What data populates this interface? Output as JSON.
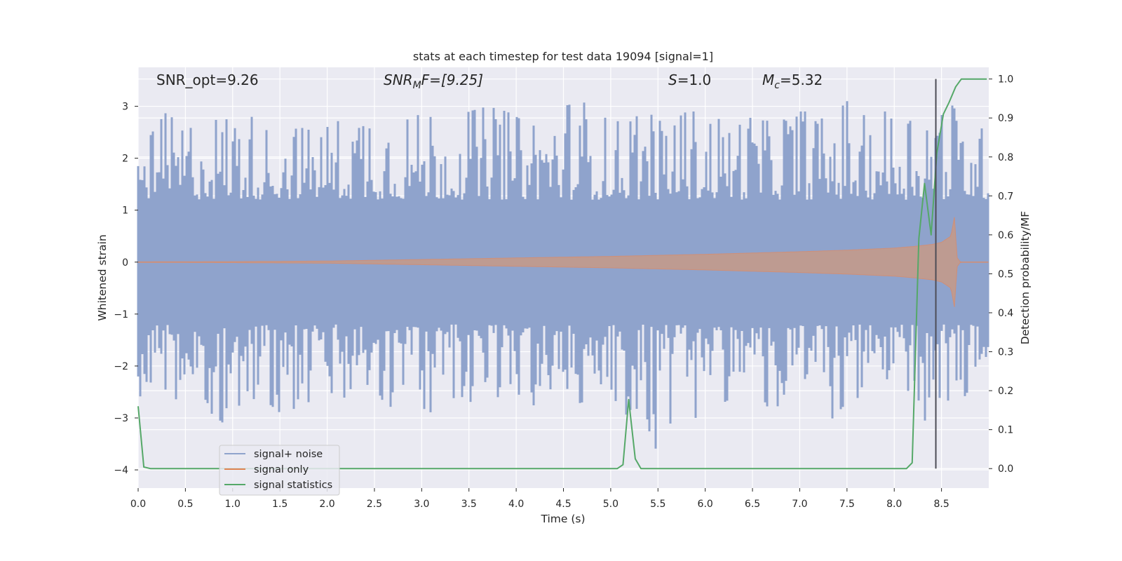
{
  "chart_data": {
    "type": "line",
    "title": "stats at each timestep for test data 19094 [signal=1]",
    "xlabel": "Time (s)",
    "ylabel": "Whitened strain",
    "ylabel_right": "Detection probability/MF",
    "xlim": [
      0,
      9.0
    ],
    "ylim": [
      -4.35,
      3.75
    ],
    "ylim_right": [
      -0.05,
      1.03
    ],
    "x_ticks": [
      0.0,
      0.5,
      1.0,
      1.5,
      2.0,
      2.5,
      3.0,
      3.5,
      4.0,
      4.5,
      5.0,
      5.5,
      6.0,
      6.5,
      7.0,
      7.5,
      8.0,
      8.5
    ],
    "x_tick_labels": [
      "0.0",
      "0.5",
      "1.0",
      "1.5",
      "2.0",
      "2.5",
      "3.0",
      "3.5",
      "4.0",
      "4.5",
      "5.0",
      "5.5",
      "6.0",
      "6.5",
      "7.0",
      "7.5",
      "8.0",
      "8.5"
    ],
    "y_ticks": [
      -4,
      -3,
      -2,
      -1,
      0,
      1,
      2,
      3
    ],
    "y_tick_labels": [
      "−4",
      "−3",
      "−2",
      "−1",
      "0",
      "1",
      "2",
      "3"
    ],
    "y_ticks_right": [
      0.0,
      0.1,
      0.2,
      0.3,
      0.4,
      0.5,
      0.6,
      0.7,
      0.8,
      0.9,
      1.0
    ],
    "y_tick_labels_right": [
      "0.0",
      "0.1",
      "0.2",
      "0.3",
      "0.4",
      "0.5",
      "0.6",
      "0.7",
      "0.8",
      "0.9",
      "1.0"
    ],
    "grid": true,
    "legend_position": "lower-left",
    "annotations": {
      "snr_opt": "SNR_opt=9.26",
      "snr_mf_main": "SNR",
      "snr_mf_sub": "M",
      "snr_mf_rest": "F=[9.25]",
      "s_main": "S",
      "s_rest": "=1.0",
      "mc_main": "M",
      "mc_sub": "c",
      "mc_rest": "=5.32"
    },
    "vline": {
      "x": 8.44,
      "y_from": 0.0,
      "y_to": 1.0,
      "color": "#4c4c55"
    },
    "series": [
      {
        "name": "signal+ noise",
        "color": "#8fa3cc",
        "envelope": {
          "x": [
            0.0,
            0.15,
            0.3,
            0.5,
            0.7,
            0.9,
            1.1,
            1.3,
            1.5,
            1.7,
            1.9,
            2.1,
            2.3,
            2.5,
            2.7,
            2.9,
            3.1,
            3.3,
            3.5,
            3.7,
            3.9,
            4.1,
            4.3,
            4.5,
            4.7,
            4.9,
            5.1,
            5.3,
            5.5,
            5.7,
            5.9,
            6.1,
            6.3,
            6.5,
            6.7,
            6.9,
            7.1,
            7.3,
            7.5,
            7.7,
            7.9,
            8.1,
            8.3,
            8.5,
            8.7,
            9.0
          ],
          "upper": [
            2.0,
            2.5,
            2.9,
            2.5,
            2.8,
            2.7,
            3.0,
            2.6,
            2.4,
            2.6,
            2.5,
            2.7,
            2.9,
            3.2,
            2.7,
            2.8,
            2.9,
            2.6,
            2.9,
            3.0,
            2.9,
            2.7,
            2.8,
            3.0,
            3.1,
            2.8,
            2.7,
            3.1,
            2.7,
            2.9,
            2.9,
            2.8,
            2.6,
            2.8,
            2.7,
            2.9,
            2.9,
            2.7,
            3.1,
            2.8,
            2.9,
            2.9,
            3.1,
            3.3,
            2.8,
            2.5
          ],
          "lower": [
            -2.6,
            -2.5,
            -2.9,
            -2.6,
            -2.8,
            -3.1,
            -2.7,
            -2.6,
            -2.9,
            -2.8,
            -2.6,
            -2.7,
            -2.5,
            -2.7,
            -2.8,
            -2.7,
            -2.9,
            -2.6,
            -2.7,
            -2.6,
            -2.6,
            -2.8,
            -2.7,
            -2.8,
            -2.7,
            -2.9,
            -3.0,
            -2.8,
            -3.7,
            -2.8,
            -3.0,
            -2.8,
            -2.6,
            -2.7,
            -2.8,
            -2.9,
            -2.8,
            -3.1,
            -2.7,
            -2.6,
            -2.9,
            -2.8,
            -3.1,
            -2.7,
            -2.6,
            -2.5
          ],
          "core": 1.2
        }
      },
      {
        "name": "signal only",
        "color": "#dd8452",
        "envelope": {
          "x": [
            0.0,
            1.0,
            2.0,
            3.0,
            4.0,
            5.0,
            6.0,
            7.0,
            7.5,
            8.0,
            8.2,
            8.4,
            8.5,
            8.6,
            8.64,
            8.66,
            8.7,
            9.0
          ],
          "amplitude": [
            0.005,
            0.01,
            0.02,
            0.05,
            0.08,
            0.11,
            0.15,
            0.2,
            0.23,
            0.27,
            0.3,
            0.34,
            0.38,
            0.5,
            0.9,
            0.1,
            0.0,
            0.0
          ]
        }
      },
      {
        "name": "signal statistics",
        "color": "#55a868",
        "x": [
          0.0,
          0.06,
          0.13,
          0.2,
          1.0,
          2.0,
          3.0,
          4.0,
          5.0,
          5.07,
          5.13,
          5.19,
          5.26,
          5.32,
          6.0,
          7.0,
          8.0,
          8.13,
          8.19,
          8.26,
          8.32,
          8.39,
          8.45,
          8.52,
          8.58,
          8.65,
          8.71,
          8.8,
          8.98
        ],
        "y": [
          0.16,
          0.004,
          0.0,
          0.0,
          0.0,
          0.0,
          0.0,
          0.0,
          0.0,
          0.0,
          0.01,
          0.177,
          0.025,
          0.0,
          0.0,
          0.0,
          0.0,
          0.0,
          0.015,
          0.59,
          0.732,
          0.6,
          0.81,
          0.91,
          0.94,
          0.98,
          1.0,
          1.0,
          1.0
        ]
      }
    ]
  }
}
